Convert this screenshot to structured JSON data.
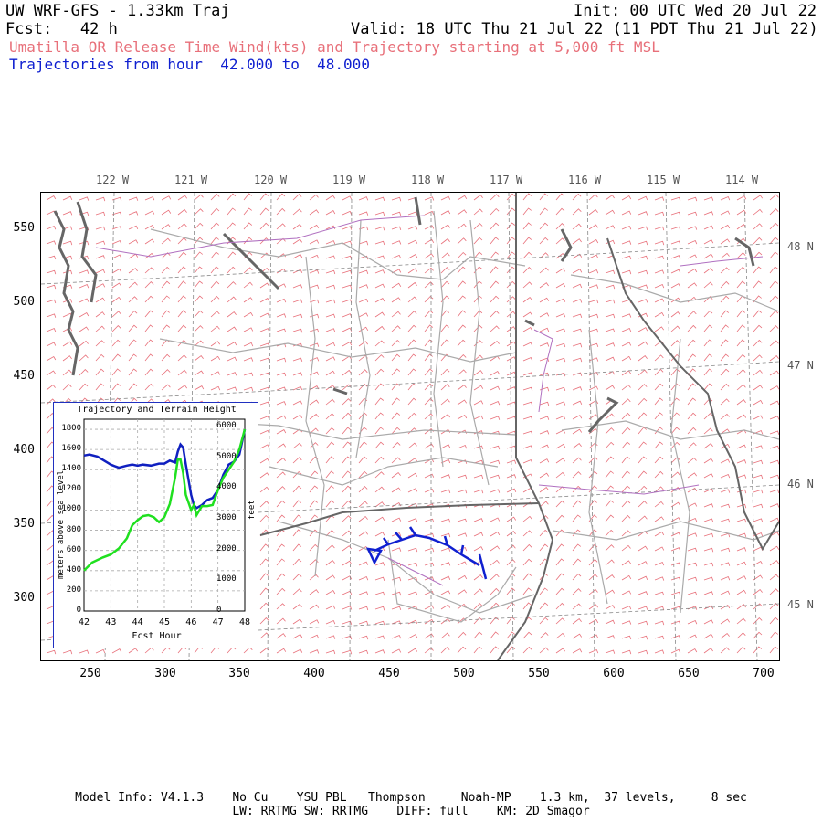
{
  "header": {
    "title": "UW WRF-GFS - 1.33km Traj",
    "init": "Init: 00 UTC Wed 20 Jul 22",
    "fcst": "Fcst:   42 h",
    "valid": "Valid: 18 UTC Thu 21 Jul 22 (11 PDT Thu 21 Jul 22)",
    "subtitle_red": "Umatilla OR Release Time Wind(kts) and Trajectory starting at 5,000 ft MSL",
    "subtitle_blue": "Trajectories from hour  42.000 to  48.000"
  },
  "map": {
    "lon_labels": [
      "122 W",
      "121 W",
      "120 W",
      "119 W",
      "118 W",
      "117 W",
      "116 W",
      "115 W",
      "114 W"
    ],
    "lat_labels": [
      "48 N",
      "47 N",
      "46 N",
      "45 N"
    ],
    "y_ticks": [
      "550",
      "500",
      "450",
      "400",
      "350",
      "300"
    ],
    "x_ticks": [
      "250",
      "300",
      "350",
      "400",
      "450",
      "500",
      "550",
      "600",
      "650",
      "700"
    ],
    "colors": {
      "wind_barbs": "#e8707a",
      "borders": "#999999",
      "coast": "#555555",
      "trajectory": "#1020d0",
      "rivers": "#b070c0"
    }
  },
  "inset": {
    "title": "Trajectory and Terrain Height",
    "x_label": "Fcst Hour",
    "y_left_label": "meters above sea level",
    "y_right_label": "feet",
    "x_ticks": [
      "42",
      "43",
      "44",
      "45",
      "46",
      "47",
      "48"
    ],
    "y_left_ticks": [
      "1800",
      "1600",
      "1400",
      "1200",
      "1000",
      "800",
      "600",
      "400",
      "200",
      "0"
    ],
    "y_right_ticks": [
      "6000",
      "5000",
      "4000",
      "3000",
      "2000",
      "1000",
      "0"
    ],
    "series": [
      {
        "color": "#1020c0",
        "x": [
          42,
          42.2,
          42.5,
          43,
          43.3,
          43.6,
          43.8,
          44,
          44.2,
          44.5,
          44.8,
          45,
          45.2,
          45.4,
          45.5,
          45.6,
          45.7,
          45.8,
          46,
          46.1,
          46.2,
          46.4,
          46.6,
          46.8,
          47,
          47.2,
          47.4,
          47.6,
          47.8,
          48
        ],
        "y": [
          1540,
          1550,
          1530,
          1450,
          1420,
          1440,
          1450,
          1440,
          1450,
          1440,
          1460,
          1460,
          1490,
          1470,
          1580,
          1650,
          1620,
          1450,
          1150,
          1050,
          1020,
          1050,
          1100,
          1120,
          1200,
          1350,
          1450,
          1480,
          1550,
          1800
        ]
      },
      {
        "color": "#20e020",
        "x": [
          42,
          42.3,
          42.7,
          43,
          43.3,
          43.6,
          43.8,
          44,
          44.2,
          44.4,
          44.6,
          44.8,
          45,
          45.2,
          45.4,
          45.5,
          45.6,
          45.7,
          45.8,
          46,
          46.1,
          46.2,
          46.4,
          46.6,
          46.8,
          47,
          47.2,
          47.4,
          47.6,
          47.8,
          48
        ],
        "y": [
          400,
          480,
          530,
          560,
          620,
          720,
          850,
          900,
          940,
          950,
          930,
          880,
          930,
          1060,
          1320,
          1500,
          1500,
          1370,
          1150,
          1000,
          1050,
          950,
          1040,
          1040,
          1050,
          1200,
          1320,
          1400,
          1480,
          1600,
          1800
        ]
      }
    ]
  },
  "footer": {
    "line1": "Model Info: V4.1.3    No Cu    YSU PBL   Thompson     Noah-MP    1.3 km,  37 levels,     8 sec",
    "line2": "LW: RRTMG SW: RRTMG    DIFF: full    KM: 2D Smagor"
  }
}
